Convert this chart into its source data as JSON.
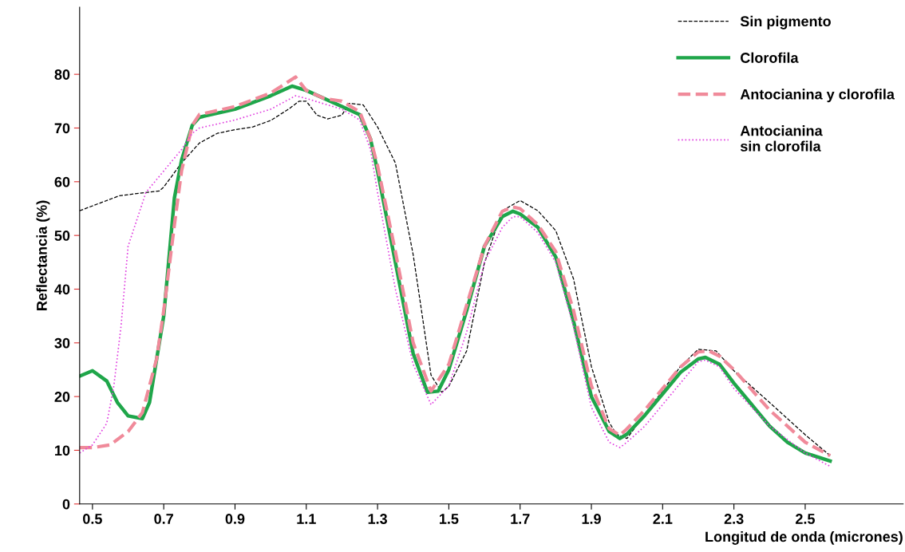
{
  "chart_data": {
    "type": "line",
    "xlabel": "Longitud de onda (micrones)",
    "ylabel": "Reflectancia (%)",
    "xlim": [
      0.464,
      2.775
    ],
    "ylim": [
      0,
      92.5
    ],
    "xticks": [
      0.5,
      0.7,
      0.9,
      1.1,
      1.3,
      1.5,
      1.7,
      1.9,
      2.1,
      2.3,
      2.5
    ],
    "yticks": [
      0,
      10,
      20,
      30,
      40,
      50,
      60,
      70,
      80
    ],
    "grid": false,
    "legend": "top right",
    "marker": "none",
    "series": [
      {
        "name": "Sin pigmento",
        "color": "#000000",
        "line_style": "dashed",
        "x": [
          0.464,
          0.576,
          0.688,
          0.7,
          0.75,
          0.8,
          0.85,
          0.9,
          0.95,
          1.0,
          1.05,
          1.08,
          1.1,
          1.13,
          1.16,
          1.2,
          1.22,
          1.26,
          1.3,
          1.35,
          1.4,
          1.42,
          1.45,
          1.48,
          1.5,
          1.55,
          1.6,
          1.65,
          1.7,
          1.75,
          1.8,
          1.85,
          1.9,
          1.95,
          1.97,
          2.0,
          2.05,
          2.1,
          2.15,
          2.2,
          2.25,
          2.3,
          2.4,
          2.5,
          2.57
        ],
        "values": [
          54.6,
          57.4,
          58.3,
          59,
          63.5,
          67.2,
          69,
          69.7,
          70.2,
          71.4,
          73.5,
          75,
          75,
          72.4,
          71.7,
          72.4,
          74.6,
          74.3,
          70.2,
          63.5,
          46.4,
          37.5,
          24,
          20.8,
          21.9,
          28.5,
          44.9,
          54.6,
          56.5,
          54.6,
          50.9,
          41.9,
          25.6,
          15.2,
          13,
          12.2,
          16.7,
          21.1,
          25.6,
          28.8,
          28.5,
          24.8,
          18.9,
          12.9,
          9
        ]
      },
      {
        "name": "Clorofila",
        "color": "#1fa64a",
        "line_style": "solid",
        "x": [
          0.464,
          0.5,
          0.54,
          0.57,
          0.6,
          0.64,
          0.66,
          0.7,
          0.73,
          0.75,
          0.78,
          0.8,
          0.9,
          1.0,
          1.06,
          1.1,
          1.2,
          1.25,
          1.28,
          1.3,
          1.35,
          1.4,
          1.44,
          1.47,
          1.5,
          1.55,
          1.6,
          1.65,
          1.68,
          1.7,
          1.75,
          1.8,
          1.85,
          1.9,
          1.95,
          1.98,
          2.0,
          2.05,
          2.1,
          2.15,
          2.2,
          2.22,
          2.26,
          2.3,
          2.35,
          2.4,
          2.45,
          2.5,
          2.57
        ],
        "values": [
          23.8,
          24.8,
          22.9,
          18.9,
          16.4,
          15.9,
          18.9,
          35,
          57,
          64,
          70.5,
          72,
          73.5,
          76,
          77.8,
          77,
          74,
          72.5,
          68,
          62,
          45,
          28,
          20.8,
          21,
          25,
          36,
          48,
          53.5,
          54.5,
          54,
          51.5,
          46,
          34,
          20,
          13.5,
          12.2,
          13,
          16.5,
          20.5,
          24.5,
          27,
          27.3,
          26,
          22.5,
          18.5,
          14.5,
          11.5,
          9.5,
          8
        ]
      },
      {
        "name": "Antocianina y clorofila",
        "color": "#f08a9a",
        "line_style": "dashed",
        "x": [
          0.464,
          0.5,
          0.55,
          0.6,
          0.64,
          0.68,
          0.7,
          0.73,
          0.75,
          0.78,
          0.8,
          0.9,
          1.0,
          1.07,
          1.1,
          1.15,
          1.2,
          1.25,
          1.28,
          1.3,
          1.35,
          1.4,
          1.45,
          1.5,
          1.55,
          1.6,
          1.65,
          1.68,
          1.7,
          1.75,
          1.8,
          1.85,
          1.9,
          1.95,
          1.98,
          2.0,
          2.05,
          2.1,
          2.15,
          2.2,
          2.23,
          2.26,
          2.3,
          2.4,
          2.5,
          2.57
        ],
        "values": [
          10.5,
          10.5,
          11,
          13.5,
          17,
          27,
          36,
          52,
          62,
          70.5,
          72.5,
          74,
          76.5,
          79.5,
          77,
          75.5,
          75,
          73,
          68,
          63,
          47,
          30,
          21,
          26,
          37,
          48,
          54.5,
          55.3,
          55,
          52,
          47,
          36,
          22,
          14,
          12.8,
          14,
          17.5,
          21.5,
          25.5,
          28.3,
          28.5,
          27.5,
          25,
          17.5,
          11.5,
          9
        ]
      },
      {
        "name": "Antocianina\nsin clorofila",
        "color": "#e040e0",
        "line_style": "dotted",
        "x": [
          0.464,
          0.5,
          0.54,
          0.56,
          0.58,
          0.6,
          0.62,
          0.65,
          0.7,
          0.75,
          0.78,
          0.8,
          0.9,
          1.0,
          1.07,
          1.1,
          1.2,
          1.25,
          1.28,
          1.3,
          1.35,
          1.4,
          1.45,
          1.5,
          1.55,
          1.6,
          1.65,
          1.68,
          1.7,
          1.75,
          1.8,
          1.85,
          1.9,
          1.95,
          1.98,
          2.0,
          2.05,
          2.1,
          2.15,
          2.2,
          2.22,
          2.26,
          2.3,
          2.4,
          2.5,
          2.57
        ],
        "values": [
          9.5,
          11,
          15,
          22,
          33,
          48,
          52,
          58,
          62,
          66,
          69,
          70,
          71.5,
          73.5,
          76,
          75.5,
          73.5,
          71.5,
          66,
          58,
          40,
          26,
          18.5,
          22,
          32,
          45,
          51.5,
          53.5,
          53.5,
          50.5,
          45,
          33,
          18,
          11.5,
          10.5,
          11.5,
          14.5,
          18.5,
          22.5,
          26.5,
          26.8,
          25.5,
          21.5,
          14.5,
          9.5,
          7
        ]
      }
    ]
  }
}
